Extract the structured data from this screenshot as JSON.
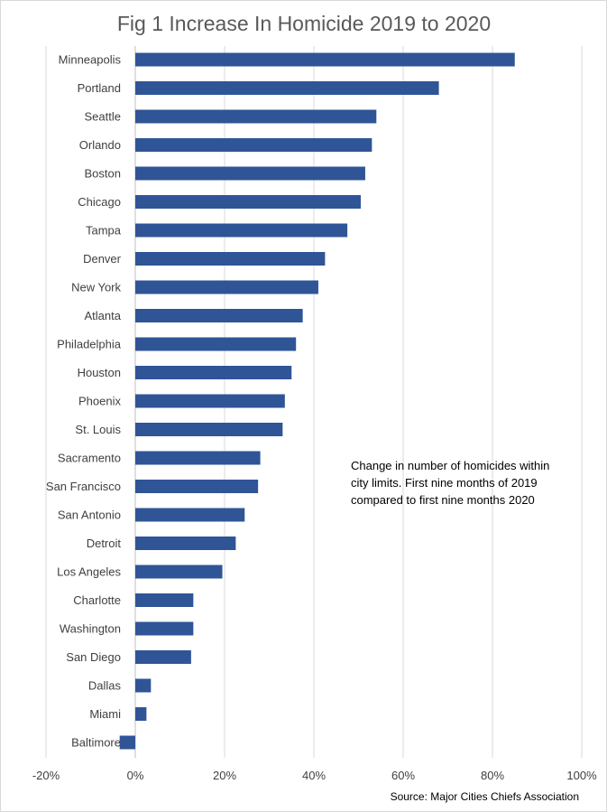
{
  "chart_data": {
    "type": "bar",
    "orientation": "horizontal",
    "title": "Fig 1 Increase In Homicide 2019 to 2020",
    "xlabel": "",
    "ylabel": "",
    "categories": [
      "Minneapolis",
      "Portland",
      "Seattle",
      "Orlando",
      "Boston",
      "Chicago",
      "Tampa",
      "Denver",
      "New York",
      "Atlanta",
      "Philadelphia",
      "Houston",
      "Phoenix",
      "St. Louis",
      "Sacramento",
      "San Francisco",
      "San Antonio",
      "Detroit",
      "Los Angeles",
      "Charlotte",
      "Washington",
      "San Diego",
      "Dallas",
      "Miami",
      "Baltimore"
    ],
    "values": [
      0.85,
      0.68,
      0.54,
      0.53,
      0.515,
      0.505,
      0.475,
      0.425,
      0.41,
      0.375,
      0.36,
      0.35,
      0.335,
      0.33,
      0.28,
      0.275,
      0.245,
      0.225,
      0.195,
      0.13,
      0.13,
      0.125,
      0.035,
      0.025,
      -0.035
    ],
    "xlim": [
      -0.2,
      1.0
    ],
    "xticks": [
      -0.2,
      0,
      0.2,
      0.4,
      0.6,
      0.8,
      1.0
    ],
    "xtick_labels": [
      "-20%",
      "0%",
      "20%",
      "40%",
      "60%",
      "80%",
      "100%"
    ],
    "grid": "vertical",
    "legend": "none",
    "bar_color": "#2f5597",
    "annotation": "Change in number of homicides within city limits. First nine months of 2019 compared to first nine months 2020",
    "source": "Source: Major Cities Chiefs Association"
  }
}
